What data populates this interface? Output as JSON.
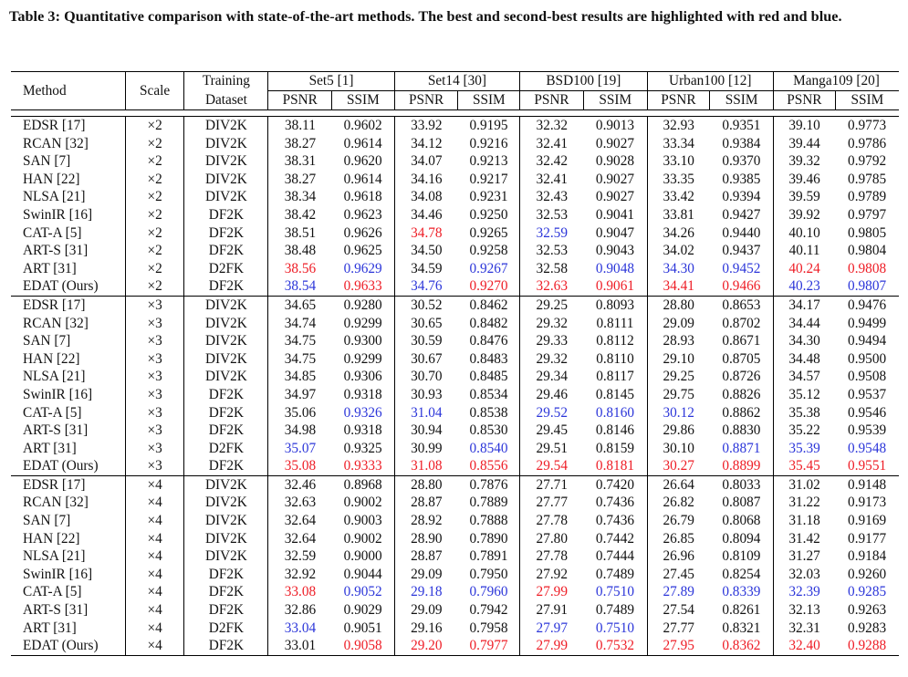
{
  "caption": "Table 3: Quantitative comparison with state-of-the-art methods. The best and second-best results are highlighted with red and blue.",
  "colors": {
    "best": "#ee1c25",
    "second": "#2b35d9"
  },
  "header": {
    "method": "Method",
    "scale": "Scale",
    "training_line1": "Training",
    "training_line2": "Dataset",
    "datasets": [
      "Set5 [1]",
      "Set14 [30]",
      "BSD100 [19]",
      "Urban100 [12]",
      "Manga109 [20]"
    ],
    "psnr": "PSNR",
    "ssim": "SSIM"
  },
  "groups": [
    {
      "rows": [
        {
          "method": "EDSR [17]",
          "scale": "×2",
          "train": "DIV2K",
          "vals": [
            "38.11",
            "0.9602",
            "33.92",
            "0.9195",
            "32.32",
            "0.9013",
            "32.93",
            "0.9351",
            "39.10",
            "0.9773"
          ],
          "hl": [
            "",
            "",
            "",
            "",
            "",
            "",
            "",
            "",
            "",
            ""
          ]
        },
        {
          "method": "RCAN [32]",
          "scale": "×2",
          "train": "DIV2K",
          "vals": [
            "38.27",
            "0.9614",
            "34.12",
            "0.9216",
            "32.41",
            "0.9027",
            "33.34",
            "0.9384",
            "39.44",
            "0.9786"
          ],
          "hl": [
            "",
            "",
            "",
            "",
            "",
            "",
            "",
            "",
            "",
            ""
          ]
        },
        {
          "method": "SAN [7]",
          "scale": "×2",
          "train": "DIV2K",
          "vals": [
            "38.31",
            "0.9620",
            "34.07",
            "0.9213",
            "32.42",
            "0.9028",
            "33.10",
            "0.9370",
            "39.32",
            "0.9792"
          ],
          "hl": [
            "",
            "",
            "",
            "",
            "",
            "",
            "",
            "",
            "",
            ""
          ]
        },
        {
          "method": "HAN [22]",
          "scale": "×2",
          "train": "DIV2K",
          "vals": [
            "38.27",
            "0.9614",
            "34.16",
            "0.9217",
            "32.41",
            "0.9027",
            "33.35",
            "0.9385",
            "39.46",
            "0.9785"
          ],
          "hl": [
            "",
            "",
            "",
            "",
            "",
            "",
            "",
            "",
            "",
            ""
          ]
        },
        {
          "method": "NLSA [21]",
          "scale": "×2",
          "train": "DIV2K",
          "vals": [
            "38.34",
            "0.9618",
            "34.08",
            "0.9231",
            "32.43",
            "0.9027",
            "33.42",
            "0.9394",
            "39.59",
            "0.9789"
          ],
          "hl": [
            "",
            "",
            "",
            "",
            "",
            "",
            "",
            "",
            "",
            ""
          ]
        },
        {
          "method": "SwinIR [16]",
          "scale": "×2",
          "train": "DF2K",
          "vals": [
            "38.42",
            "0.9623",
            "34.46",
            "0.9250",
            "32.53",
            "0.9041",
            "33.81",
            "0.9427",
            "39.92",
            "0.9797"
          ],
          "hl": [
            "",
            "",
            "",
            "",
            "",
            "",
            "",
            "",
            "",
            ""
          ]
        },
        {
          "method": "CAT-A [5]",
          "scale": "×2",
          "train": "DF2K",
          "vals": [
            "38.51",
            "0.9626",
            "34.78",
            "0.9265",
            "32.59",
            "0.9047",
            "34.26",
            "0.9440",
            "40.10",
            "0.9805"
          ],
          "hl": [
            "",
            "",
            "red",
            "",
            "blue",
            "",
            "",
            "",
            "",
            ""
          ]
        },
        {
          "method": "ART-S [31]",
          "scale": "×2",
          "train": "DF2K",
          "vals": [
            "38.48",
            "0.9625",
            "34.50",
            "0.9258",
            "32.53",
            "0.9043",
            "34.02",
            "0.9437",
            "40.11",
            "0.9804"
          ],
          "hl": [
            "",
            "",
            "",
            "",
            "",
            "",
            "",
            "",
            "",
            ""
          ]
        },
        {
          "method": "ART [31]",
          "scale": "×2",
          "train": "D2FK",
          "vals": [
            "38.56",
            "0.9629",
            "34.59",
            "0.9267",
            "32.58",
            "0.9048",
            "34.30",
            "0.9452",
            "40.24",
            "0.9808"
          ],
          "hl": [
            "red",
            "blue",
            "",
            "blue",
            "",
            "blue",
            "blue",
            "blue",
            "red",
            "red"
          ]
        },
        {
          "method": "EDAT (Ours)",
          "scale": "×2",
          "train": "DF2K",
          "vals": [
            "38.54",
            "0.9633",
            "34.76",
            "0.9270",
            "32.63",
            "0.9061",
            "34.41",
            "0.9466",
            "40.23",
            "0.9807"
          ],
          "hl": [
            "blue",
            "red",
            "blue",
            "red",
            "red",
            "red",
            "red",
            "red",
            "blue",
            "blue"
          ]
        }
      ]
    },
    {
      "rows": [
        {
          "method": "EDSR [17]",
          "scale": "×3",
          "train": "DIV2K",
          "vals": [
            "34.65",
            "0.9280",
            "30.52",
            "0.8462",
            "29.25",
            "0.8093",
            "28.80",
            "0.8653",
            "34.17",
            "0.9476"
          ],
          "hl": [
            "",
            "",
            "",
            "",
            "",
            "",
            "",
            "",
            "",
            ""
          ]
        },
        {
          "method": "RCAN [32]",
          "scale": "×3",
          "train": "DIV2K",
          "vals": [
            "34.74",
            "0.9299",
            "30.65",
            "0.8482",
            "29.32",
            "0.8111",
            "29.09",
            "0.8702",
            "34.44",
            "0.9499"
          ],
          "hl": [
            "",
            "",
            "",
            "",
            "",
            "",
            "",
            "",
            "",
            ""
          ]
        },
        {
          "method": "SAN [7]",
          "scale": "×3",
          "train": "DIV2K",
          "vals": [
            "34.75",
            "0.9300",
            "30.59",
            "0.8476",
            "29.33",
            "0.8112",
            "28.93",
            "0.8671",
            "34.30",
            "0.9494"
          ],
          "hl": [
            "",
            "",
            "",
            "",
            "",
            "",
            "",
            "",
            "",
            ""
          ]
        },
        {
          "method": "HAN [22]",
          "scale": "×3",
          "train": "DIV2K",
          "vals": [
            "34.75",
            "0.9299",
            "30.67",
            "0.8483",
            "29.32",
            "0.8110",
            "29.10",
            "0.8705",
            "34.48",
            "0.9500"
          ],
          "hl": [
            "",
            "",
            "",
            "",
            "",
            "",
            "",
            "",
            "",
            ""
          ]
        },
        {
          "method": "NLSA [21]",
          "scale": "×3",
          "train": "DIV2K",
          "vals": [
            "34.85",
            "0.9306",
            "30.70",
            "0.8485",
            "29.34",
            "0.8117",
            "29.25",
            "0.8726",
            "34.57",
            "0.9508"
          ],
          "hl": [
            "",
            "",
            "",
            "",
            "",
            "",
            "",
            "",
            "",
            ""
          ]
        },
        {
          "method": "SwinIR [16]",
          "scale": "×3",
          "train": "DF2K",
          "vals": [
            "34.97",
            "0.9318",
            "30.93",
            "0.8534",
            "29.46",
            "0.8145",
            "29.75",
            "0.8826",
            "35.12",
            "0.9537"
          ],
          "hl": [
            "",
            "",
            "",
            "",
            "",
            "",
            "",
            "",
            "",
            ""
          ]
        },
        {
          "method": "CAT-A [5]",
          "scale": "×3",
          "train": "DF2K",
          "vals": [
            "35.06",
            "0.9326",
            "31.04",
            "0.8538",
            "29.52",
            "0.8160",
            "30.12",
            "0.8862",
            "35.38",
            "0.9546"
          ],
          "hl": [
            "",
            "blue",
            "blue",
            "",
            "blue",
            "blue",
            "blue",
            "",
            "",
            ""
          ]
        },
        {
          "method": "ART-S [31]",
          "scale": "×3",
          "train": "DF2K",
          "vals": [
            "34.98",
            "0.9318",
            "30.94",
            "0.8530",
            "29.45",
            "0.8146",
            "29.86",
            "0.8830",
            "35.22",
            "0.9539"
          ],
          "hl": [
            "",
            "",
            "",
            "",
            "",
            "",
            "",
            "",
            "",
            ""
          ]
        },
        {
          "method": "ART [31]",
          "scale": "×3",
          "train": "D2FK",
          "vals": [
            "35.07",
            "0.9325",
            "30.99",
            "0.8540",
            "29.51",
            "0.8159",
            "30.10",
            "0.8871",
            "35.39",
            "0.9548"
          ],
          "hl": [
            "blue",
            "",
            "",
            "blue",
            "",
            "",
            "",
            "blue",
            "blue",
            "blue"
          ]
        },
        {
          "method": "EDAT (Ours)",
          "scale": "×3",
          "train": "DF2K",
          "vals": [
            "35.08",
            "0.9333",
            "31.08",
            "0.8556",
            "29.54",
            "0.8181",
            "30.27",
            "0.8899",
            "35.45",
            "0.9551"
          ],
          "hl": [
            "red",
            "red",
            "red",
            "red",
            "red",
            "red",
            "red",
            "red",
            "red",
            "red"
          ]
        }
      ]
    },
    {
      "rows": [
        {
          "method": "EDSR [17]",
          "scale": "×4",
          "train": "DIV2K",
          "vals": [
            "32.46",
            "0.8968",
            "28.80",
            "0.7876",
            "27.71",
            "0.7420",
            "26.64",
            "0.8033",
            "31.02",
            "0.9148"
          ],
          "hl": [
            "",
            "",
            "",
            "",
            "",
            "",
            "",
            "",
            "",
            ""
          ]
        },
        {
          "method": "RCAN [32]",
          "scale": "×4",
          "train": "DIV2K",
          "vals": [
            "32.63",
            "0.9002",
            "28.87",
            "0.7889",
            "27.77",
            "0.7436",
            "26.82",
            "0.8087",
            "31.22",
            "0.9173"
          ],
          "hl": [
            "",
            "",
            "",
            "",
            "",
            "",
            "",
            "",
            "",
            ""
          ]
        },
        {
          "method": "SAN [7]",
          "scale": "×4",
          "train": "DIV2K",
          "vals": [
            "32.64",
            "0.9003",
            "28.92",
            "0.7888",
            "27.78",
            "0.7436",
            "26.79",
            "0.8068",
            "31.18",
            "0.9169"
          ],
          "hl": [
            "",
            "",
            "",
            "",
            "",
            "",
            "",
            "",
            "",
            ""
          ]
        },
        {
          "method": "HAN [22]",
          "scale": "×4",
          "train": "DIV2K",
          "vals": [
            "32.64",
            "0.9002",
            "28.90",
            "0.7890",
            "27.80",
            "0.7442",
            "26.85",
            "0.8094",
            "31.42",
            "0.9177"
          ],
          "hl": [
            "",
            "",
            "",
            "",
            "",
            "",
            "",
            "",
            "",
            ""
          ]
        },
        {
          "method": "NLSA [21]",
          "scale": "×4",
          "train": "DIV2K",
          "vals": [
            "32.59",
            "0.9000",
            "28.87",
            "0.7891",
            "27.78",
            "0.7444",
            "26.96",
            "0.8109",
            "31.27",
            "0.9184"
          ],
          "hl": [
            "",
            "",
            "",
            "",
            "",
            "",
            "",
            "",
            "",
            ""
          ]
        },
        {
          "method": "SwinIR [16]",
          "scale": "×4",
          "train": "DF2K",
          "vals": [
            "32.92",
            "0.9044",
            "29.09",
            "0.7950",
            "27.92",
            "0.7489",
            "27.45",
            "0.8254",
            "32.03",
            "0.9260"
          ],
          "hl": [
            "",
            "",
            "",
            "",
            "",
            "",
            "",
            "",
            "",
            ""
          ]
        },
        {
          "method": "CAT-A [5]",
          "scale": "×4",
          "train": "DF2K",
          "vals": [
            "33.08",
            "0.9052",
            "29.18",
            "0.7960",
            "27.99",
            "0.7510",
            "27.89",
            "0.8339",
            "32.39",
            "0.9285"
          ],
          "hl": [
            "red",
            "blue",
            "blue",
            "blue",
            "red",
            "blue",
            "blue",
            "blue",
            "blue",
            "blue"
          ]
        },
        {
          "method": "ART-S [31]",
          "scale": "×4",
          "train": "DF2K",
          "vals": [
            "32.86",
            "0.9029",
            "29.09",
            "0.7942",
            "27.91",
            "0.7489",
            "27.54",
            "0.8261",
            "32.13",
            "0.9263"
          ],
          "hl": [
            "",
            "",
            "",
            "",
            "",
            "",
            "",
            "",
            "",
            ""
          ]
        },
        {
          "method": "ART [31]",
          "scale": "×4",
          "train": "D2FK",
          "vals": [
            "33.04",
            "0.9051",
            "29.16",
            "0.7958",
            "27.97",
            "0.7510",
            "27.77",
            "0.8321",
            "32.31",
            "0.9283"
          ],
          "hl": [
            "blue",
            "",
            "",
            "",
            "blue",
            "blue",
            "",
            "",
            "",
            ""
          ]
        },
        {
          "method": "EDAT (Ours)",
          "scale": "×4",
          "train": "DF2K",
          "vals": [
            "33.01",
            "0.9058",
            "29.20",
            "0.7977",
            "27.99",
            "0.7532",
            "27.95",
            "0.8362",
            "32.40",
            "0.9288"
          ],
          "hl": [
            "",
            "red",
            "red",
            "red",
            "red",
            "red",
            "red",
            "red",
            "red",
            "red"
          ]
        }
      ]
    }
  ]
}
